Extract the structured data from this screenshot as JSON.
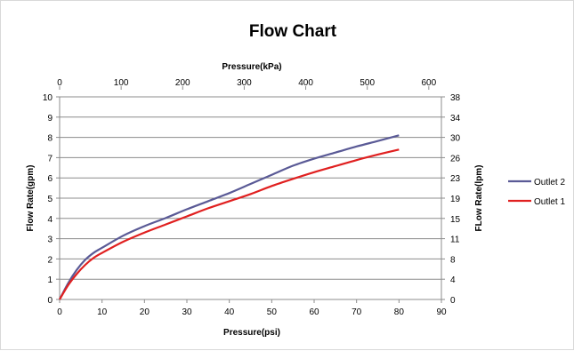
{
  "chart_data": {
    "type": "line",
    "title": "Flow Chart",
    "xlabel": "Pressure(psi)",
    "x2label": "Pressure(kPa)",
    "ylabel": "Flow Rate(gpm)",
    "y2label": "FLow Rate(lpm)",
    "xlim": [
      0,
      90
    ],
    "ylim": [
      0,
      10
    ],
    "x2lim": [
      0,
      620.5
    ],
    "x_ticks": [
      "0",
      "10",
      "20",
      "30",
      "40",
      "50",
      "60",
      "70",
      "80",
      "90"
    ],
    "y_ticks": [
      "0",
      "1",
      "2",
      "3",
      "4",
      "5",
      "6",
      "7",
      "8",
      "9",
      "10"
    ],
    "x2_ticks": [
      "0",
      "100",
      "200",
      "300",
      "400",
      "500",
      "600"
    ],
    "y2_ticks": [
      "0",
      "4",
      "8",
      "11",
      "15",
      "19",
      "23",
      "26",
      "30",
      "34",
      "38"
    ],
    "grid": true,
    "legend_position": "right",
    "series": [
      {
        "name": "Outlet 2",
        "color": "#5a5a96",
        "x": [
          0,
          2,
          4,
          6,
          8,
          10,
          15,
          20,
          25,
          30,
          35,
          40,
          45,
          50,
          55,
          60,
          65,
          70,
          75,
          80
        ],
        "y": [
          0,
          0.8,
          1.45,
          1.95,
          2.3,
          2.55,
          3.15,
          3.62,
          4.02,
          4.45,
          4.85,
          5.25,
          5.7,
          6.15,
          6.6,
          6.95,
          7.25,
          7.55,
          7.82,
          8.1
        ]
      },
      {
        "name": "Outlet 1",
        "color": "#e02020",
        "x": [
          0,
          2,
          4,
          6,
          8,
          10,
          15,
          20,
          25,
          30,
          35,
          40,
          45,
          50,
          55,
          60,
          65,
          70,
          75,
          80
        ],
        "y": [
          0,
          0.7,
          1.25,
          1.7,
          2.05,
          2.3,
          2.85,
          3.3,
          3.7,
          4.1,
          4.5,
          4.85,
          5.2,
          5.6,
          5.95,
          6.28,
          6.58,
          6.88,
          7.15,
          7.4
        ]
      }
    ]
  }
}
